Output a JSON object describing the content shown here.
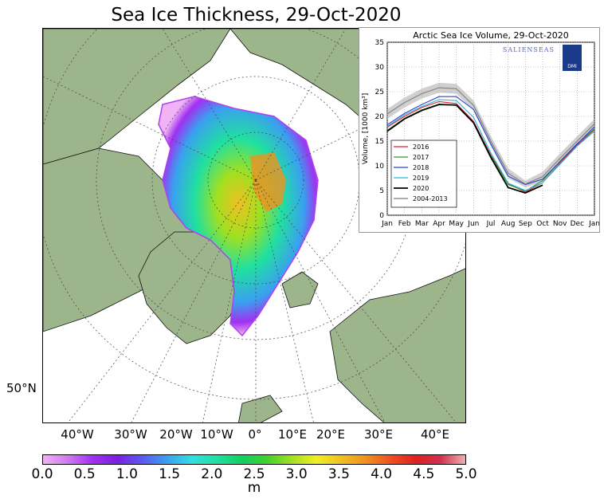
{
  "title": "Sea Ice Thickness, 29-Oct-2020",
  "map": {
    "longitude_labels": [
      "40°W",
      "30°W",
      "20°W",
      "10°W",
      "0°",
      "10°E",
      "20°E",
      "30°E",
      "40°E"
    ],
    "latitude_labels": [
      "50°N"
    ],
    "land_color": "#9db58a",
    "ocean_color": "#ffffff"
  },
  "colorbar": {
    "ticks": [
      "0.0",
      "0.5",
      "1.0",
      "1.5",
      "2.0",
      "2.5",
      "3.0",
      "3.5",
      "4.0",
      "4.5",
      "5.0"
    ],
    "unit": "m",
    "min": 0.0,
    "max": 5.0,
    "colors": [
      "#f0b3f5",
      "#cf7af0",
      "#a030f0",
      "#7a1fe0",
      "#5a5af0",
      "#3aa0f0",
      "#30e0e0",
      "#20e0a0",
      "#10d060",
      "#40d030",
      "#a0e020",
      "#f0f020",
      "#f0c020",
      "#f09020",
      "#f05020",
      "#e02020",
      "#d03050",
      "#f0b0b0"
    ]
  },
  "chart_data": {
    "type": "line",
    "title": "Arctic Sea Ice Volume, 29-Oct-2020",
    "xlabel": "",
    "ylabel": "Volume, [1000 km³]",
    "categories": [
      "Jan",
      "Feb",
      "Mar",
      "Apr",
      "May",
      "Jun",
      "Jul",
      "Aug",
      "Sep",
      "Oct",
      "Nov",
      "Dec",
      "Jan"
    ],
    "ylim": [
      0,
      35
    ],
    "yticks": [
      "0",
      "5",
      "10",
      "15",
      "20",
      "25",
      "30",
      "35"
    ],
    "grid": true,
    "legend_position": "lower-left",
    "logo_text": "SALIENSEAS",
    "logo_badge": "DMI",
    "band": {
      "name": "2004-2013",
      "color": "#b0b0b0",
      "upper": [
        21.5,
        23.8,
        25.6,
        26.8,
        26.6,
        23.2,
        16.0,
        9.5,
        7.0,
        8.8,
        12.5,
        16.0,
        19.5
      ],
      "lower": [
        19.5,
        21.8,
        23.6,
        24.8,
        24.6,
        21.2,
        14.0,
        7.5,
        5.6,
        6.8,
        10.5,
        14.0,
        17.5
      ]
    },
    "series": [
      {
        "name": "2016",
        "color": "#e8202c",
        "values": [
          17.8,
          20.0,
          21.8,
          23.0,
          22.6,
          19.0,
          12.2,
          6.4,
          4.7,
          6.6,
          10.5,
          14.2,
          17.3
        ]
      },
      {
        "name": "2017",
        "color": "#2a9a2a",
        "values": [
          17.2,
          19.6,
          21.3,
          22.5,
          22.2,
          18.8,
          12.0,
          6.2,
          4.9,
          7.0,
          10.9,
          14.5,
          17.5
        ]
      },
      {
        "name": "2018",
        "color": "#2a40d8",
        "values": [
          18.3,
          20.6,
          22.4,
          24.0,
          24.0,
          21.4,
          14.4,
          7.9,
          6.2,
          7.3,
          10.8,
          14.4,
          17.9
        ]
      },
      {
        "name": "2019",
        "color": "#2ab8d8",
        "values": [
          18.0,
          20.3,
          22.0,
          23.4,
          23.2,
          19.8,
          12.6,
          6.5,
          5.0,
          6.6,
          10.3,
          14.0,
          17.0
        ]
      },
      {
        "name": "2020",
        "color": "#000000",
        "values": [
          17.0,
          19.5,
          21.2,
          22.4,
          22.3,
          18.7,
          11.7,
          5.6,
          4.5,
          6.1,
          null,
          null,
          null
        ]
      },
      {
        "name": "2004-2013",
        "color": "#808080",
        "values": [
          20.5,
          22.8,
          24.6,
          25.8,
          25.6,
          22.2,
          15.0,
          8.5,
          6.3,
          7.8,
          11.5,
          15.0,
          18.5
        ]
      }
    ]
  }
}
